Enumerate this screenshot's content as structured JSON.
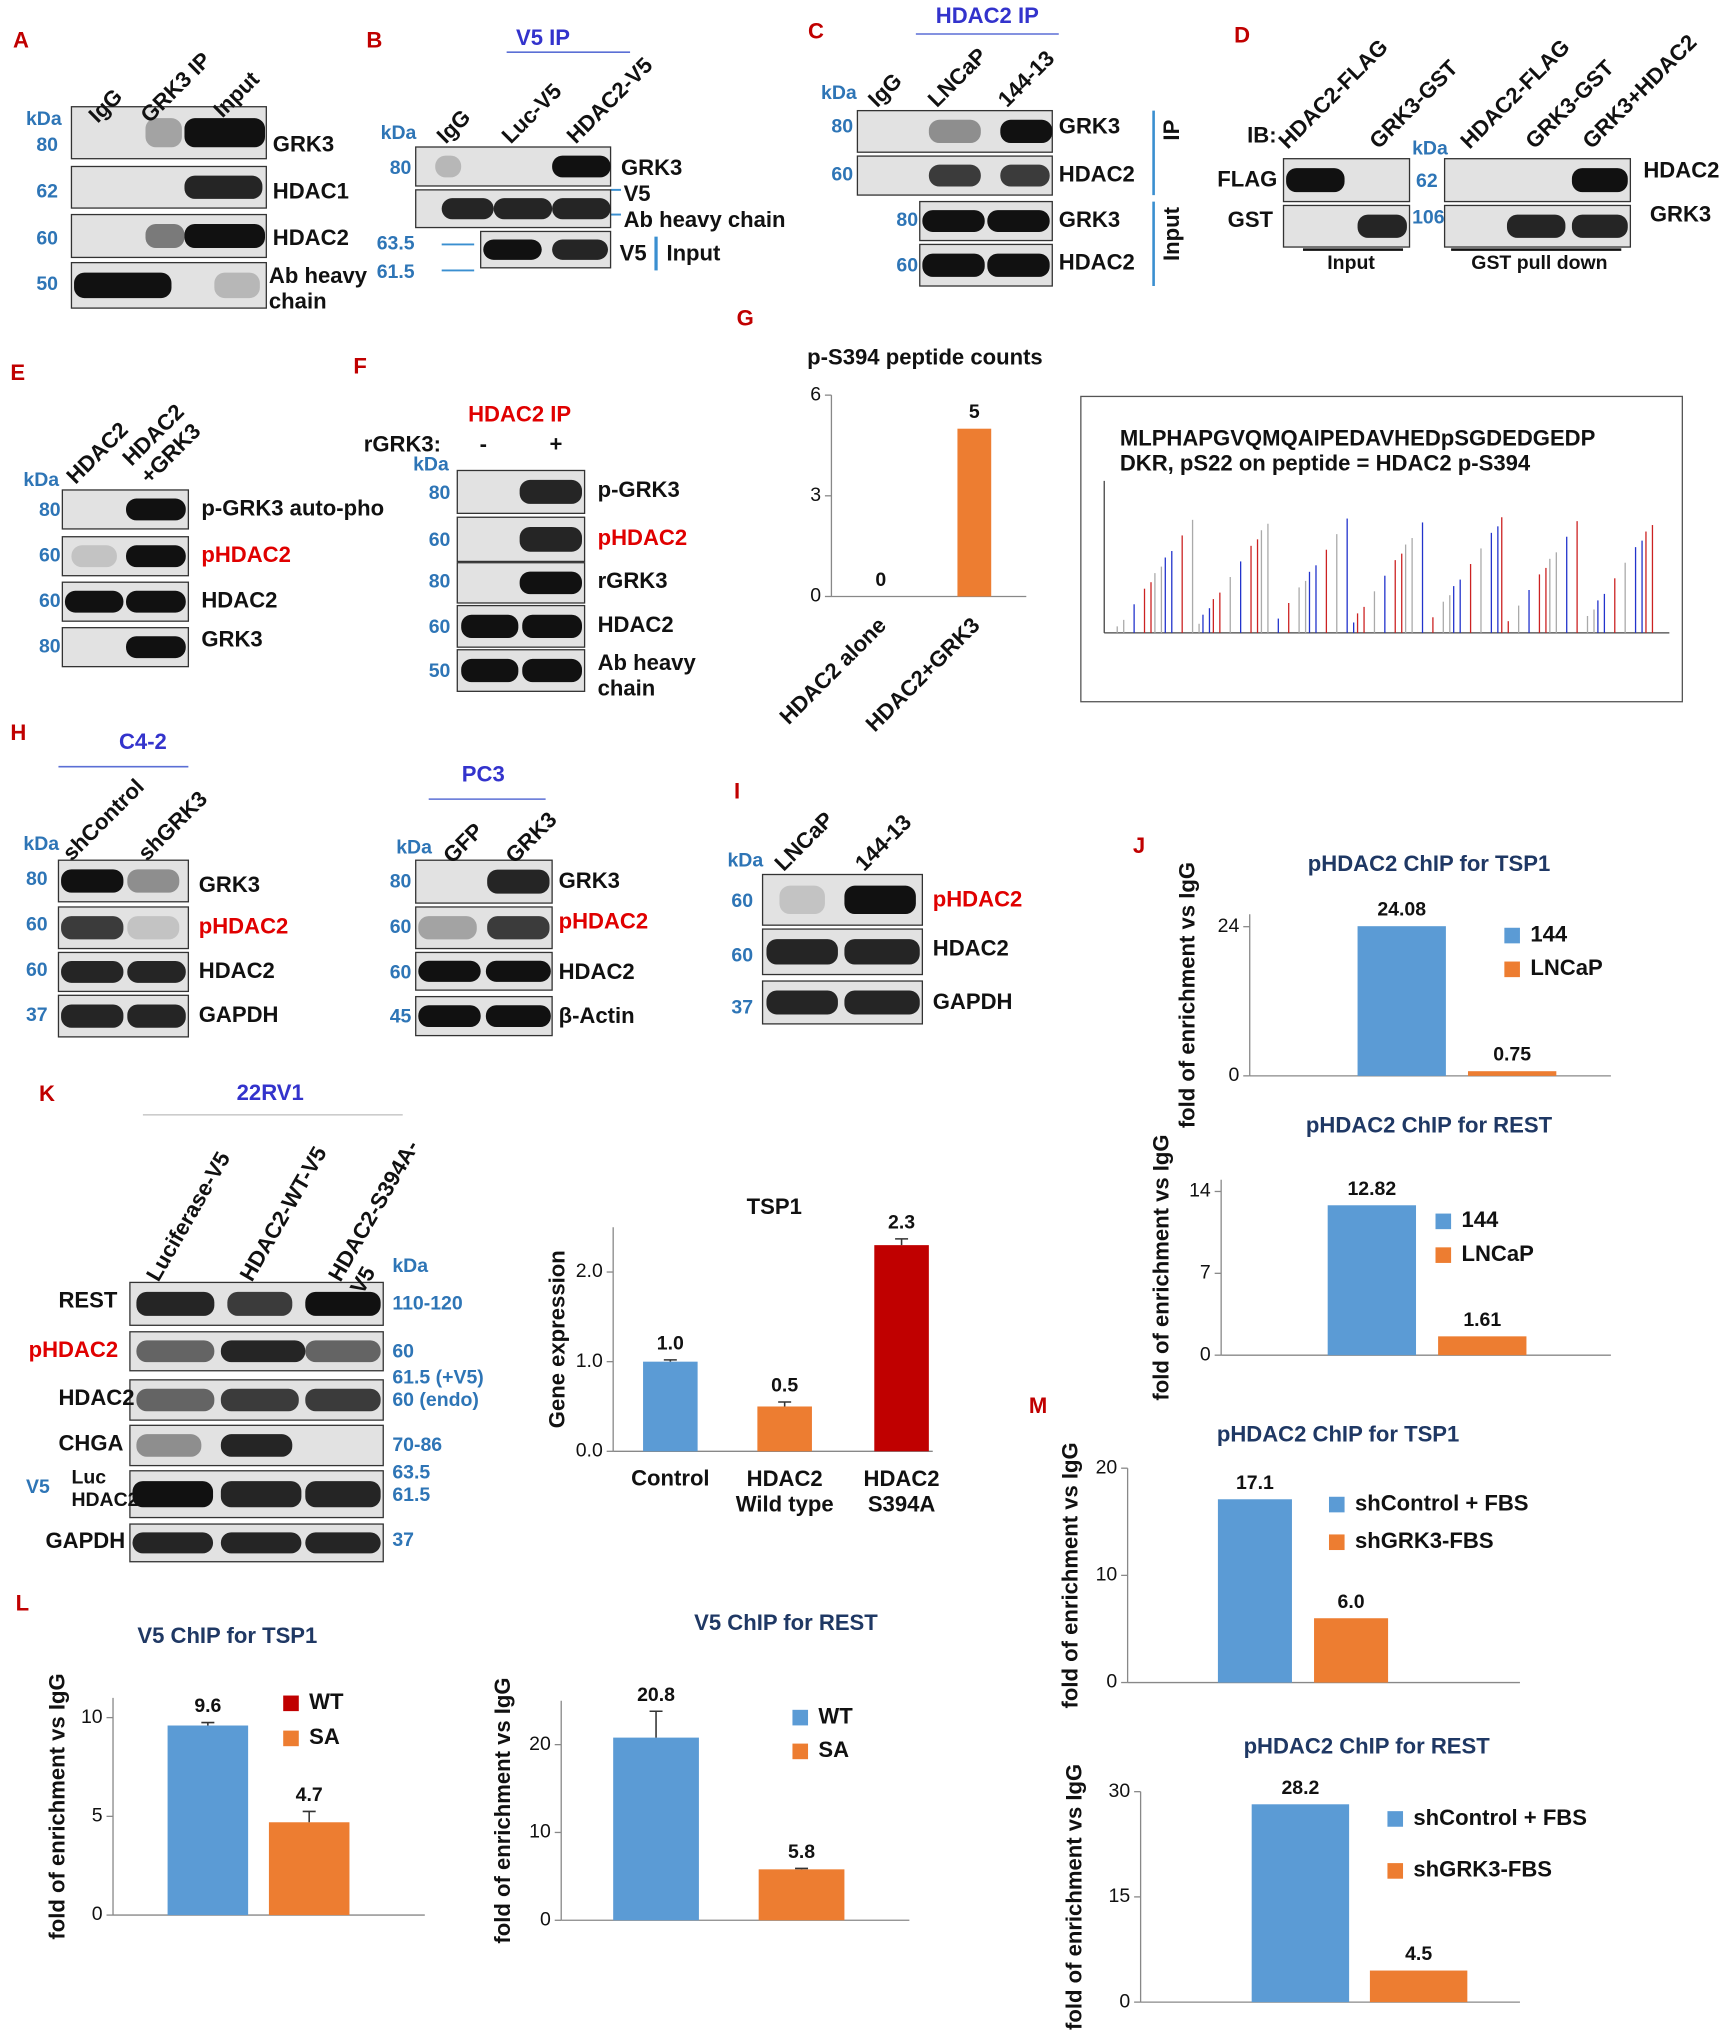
{
  "panels": {
    "A": {
      "letter": "A",
      "kda": "kDa",
      "lanes": [
        "IgG",
        "GRK3 IP",
        "Input"
      ],
      "markers": [
        80,
        62,
        60,
        50
      ],
      "labels": [
        "GRK3",
        "HDAC1",
        "HDAC2",
        "Ab heavy\nchain"
      ]
    },
    "B": {
      "letter": "B",
      "title": "V5 IP",
      "kda": "kDa",
      "lanes": [
        "IgG",
        "Luc-V5",
        "HDAC2-V5"
      ],
      "markers": [
        80,
        63.5,
        61.5
      ],
      "labels": [
        "GRK3",
        "V5",
        "Ab heavy chain",
        "V5",
        "Input"
      ]
    },
    "C": {
      "letter": "C",
      "title": "HDAC2 IP",
      "kda": "kDa",
      "lanes": [
        "IgG",
        "LNCaP",
        "144-13"
      ],
      "markers": [
        80,
        60,
        80,
        60
      ],
      "labels": [
        "GRK3",
        "HDAC2",
        "GRK3",
        "HDAC2"
      ],
      "groups": [
        "IP",
        "Input"
      ]
    },
    "D": {
      "letter": "D",
      "ib": "IB:",
      "lanes": [
        "HDAC2-FLAG",
        "GRK3-GST",
        "HDAC2-FLAG",
        "GRK3-GST",
        "GRK3+HDAC2"
      ],
      "kda": "kDa",
      "left_labels": [
        "FLAG",
        "GST"
      ],
      "markers": [
        62,
        106
      ],
      "labels": [
        "HDAC2",
        "GRK3"
      ],
      "groups": [
        "Input",
        "GST pull down"
      ]
    },
    "E": {
      "letter": "E",
      "kda": "kDa",
      "lanes": [
        "HDAC2",
        "HDAC2\n+GRK3"
      ],
      "markers": [
        80,
        60,
        60,
        80
      ],
      "labels": [
        "p-GRK3 auto-pho",
        "pHDAC2",
        "HDAC2",
        "GRK3"
      ]
    },
    "F": {
      "letter": "F",
      "title": "HDAC2 IP",
      "treatment": "rGRK3:",
      "conditions": [
        "-",
        "+"
      ],
      "kda": "kDa",
      "markers": [
        80,
        60,
        80,
        60,
        50
      ],
      "labels": [
        "p-GRK3",
        "pHDAC2",
        "rGRK3",
        "HDAC2",
        "Ab heavy\nchain"
      ]
    },
    "G": {
      "letter": "G",
      "spectrum_text": "MLPHAPGVQMQAIPEDAVHEDpSGDEDGEDP\nDKR, pS22 on peptide = HDAC2 p-S394"
    },
    "H": {
      "letter": "H",
      "blots": [
        {
          "title": "C4-2",
          "kda": "kDa",
          "lanes": [
            "shControl",
            "shGRK3"
          ],
          "markers": [
            80,
            60,
            60,
            37
          ],
          "labels": [
            "GRK3",
            "pHDAC2",
            "HDAC2",
            "GAPDH"
          ]
        },
        {
          "title": "PC3",
          "kda": "kDa",
          "lanes": [
            "GFP",
            "GRK3"
          ],
          "markers": [
            80,
            60,
            60,
            45
          ],
          "labels": [
            "GRK3",
            "pHDAC2",
            "HDAC2",
            "β-Actin"
          ]
        }
      ]
    },
    "I": {
      "letter": "I",
      "kda": "kDa",
      "lanes": [
        "LNCaP",
        "144-13"
      ],
      "markers": [
        60,
        60,
        37
      ],
      "labels": [
        "pHDAC2",
        "HDAC2",
        "GAPDH"
      ]
    },
    "J": {
      "letter": "J"
    },
    "K": {
      "letter": "K",
      "title": "22RV1",
      "lanes": [
        "Luciferase-V5",
        "HDAC2-WT-V5",
        "HDAC2-S394A-\nV5"
      ],
      "kda": "kDa",
      "labels": [
        "REST",
        "pHDAC2",
        "HDAC2",
        "CHGA",
        "Luc\nHDAC2",
        "GAPDH"
      ],
      "tag": "V5",
      "markers": [
        "110-120",
        "60",
        "61.5 (+V5)\n60 (endo)",
        "70-86",
        "63.5\n61.5",
        "37"
      ]
    },
    "L": {
      "letter": "L"
    },
    "M": {
      "letter": "M"
    }
  },
  "chart_data": [
    {
      "type": "bar",
      "title": "p-S394 peptide counts",
      "categories": [
        "HDAC2 alone",
        "HDAC2+GRK3"
      ],
      "values": [
        0,
        5
      ],
      "color": "#ed7d31",
      "ylim": [
        0,
        6
      ],
      "yticks": [
        0,
        3,
        6
      ]
    },
    {
      "type": "bar",
      "title": "pHDAC2 ChIP for TSP1",
      "y_label": "fold of enrichment vs IgG",
      "series": [
        {
          "name": "144",
          "color": "#5b9bd5",
          "values": [
            24.08
          ]
        },
        {
          "name": "LNCaP",
          "color": "#ed7d31",
          "values": [
            0.75
          ]
        }
      ],
      "ylim": [
        0,
        26
      ],
      "yticks": [
        0,
        24
      ]
    },
    {
      "type": "bar",
      "title": "pHDAC2 ChIP for REST",
      "y_label": "fold of enrichment vs IgG",
      "series": [
        {
          "name": "144",
          "color": "#5b9bd5",
          "values": [
            12.82
          ]
        },
        {
          "name": "LNCaP",
          "color": "#ed7d31",
          "values": [
            1.61
          ]
        }
      ],
      "ylim": [
        0,
        15
      ],
      "yticks": [
        0,
        7,
        14
      ]
    },
    {
      "type": "bar",
      "title": "TSP1",
      "y_label": "Gene expression",
      "categories": [
        "Control",
        "HDAC2\nWild type",
        "HDAC2\nS394A"
      ],
      "values": [
        1,
        0.5,
        2.3
      ],
      "value_labels": [
        "1.0",
        "0.5",
        "2.3"
      ],
      "errors": [
        0.02,
        0.05,
        0.07
      ],
      "colors": [
        "#5b9bd5",
        "#ed7d31",
        "#c00000"
      ],
      "ylim": [
        0,
        2.5
      ],
      "yticks": [
        {
          "value": 0,
          "label": "0.0"
        },
        {
          "value": 1,
          "label": "1.0"
        },
        {
          "value": 2,
          "label": "2.0"
        }
      ]
    },
    {
      "type": "bar",
      "title": "V5 ChIP for TSP1",
      "y_label": "fold of enrichment vs IgG",
      "series": [
        {
          "name": "WT",
          "color": "#5b9bd5",
          "legend_color": "#c00000",
          "values": [
            9.6
          ],
          "errors": [
            0.15
          ]
        },
        {
          "name": "SA",
          "color": "#ed7d31",
          "values": [
            4.7
          ],
          "errors": [
            0.55
          ]
        }
      ],
      "ylim": [
        0,
        11
      ],
      "yticks": [
        0,
        5,
        10
      ]
    },
    {
      "type": "bar",
      "title": "V5 ChIP for REST",
      "y_label": "fold of enrichment vs IgG",
      "series": [
        {
          "name": "WT",
          "color": "#5b9bd5",
          "values": [
            20.8
          ],
          "errors": [
            3.0
          ]
        },
        {
          "name": "SA",
          "color": "#ed7d31",
          "values": [
            5.8
          ],
          "errors": [
            0.1
          ]
        }
      ],
      "ylim": [
        0,
        25
      ],
      "yticks": [
        0,
        10,
        20
      ]
    },
    {
      "type": "bar",
      "title": "pHDAC2 ChIP for TSP1",
      "y_label": "fold of enrichment vs IgG",
      "series": [
        {
          "name": "shControl + FBS",
          "color": "#5b9bd5",
          "values": [
            17.1
          ]
        },
        {
          "name": "shGRK3-FBS",
          "color": "#ed7d31",
          "values": [
            6
          ],
          "value_labels": [
            "6.0"
          ]
        }
      ],
      "ylim": [
        0,
        20
      ],
      "yticks": [
        0,
        10,
        20
      ]
    },
    {
      "type": "bar",
      "title": "pHDAC2 ChIP for REST",
      "y_label": "fold of enrichment vs IgG",
      "series": [
        {
          "name": "shControl + FBS",
          "color": "#5b9bd5",
          "values": [
            28.2
          ]
        },
        {
          "name": "shGRK3-FBS",
          "color": "#ed7d31",
          "values": [
            4.5
          ]
        }
      ],
      "ylim": [
        0,
        30
      ],
      "yticks": [
        0,
        15,
        30
      ]
    }
  ]
}
